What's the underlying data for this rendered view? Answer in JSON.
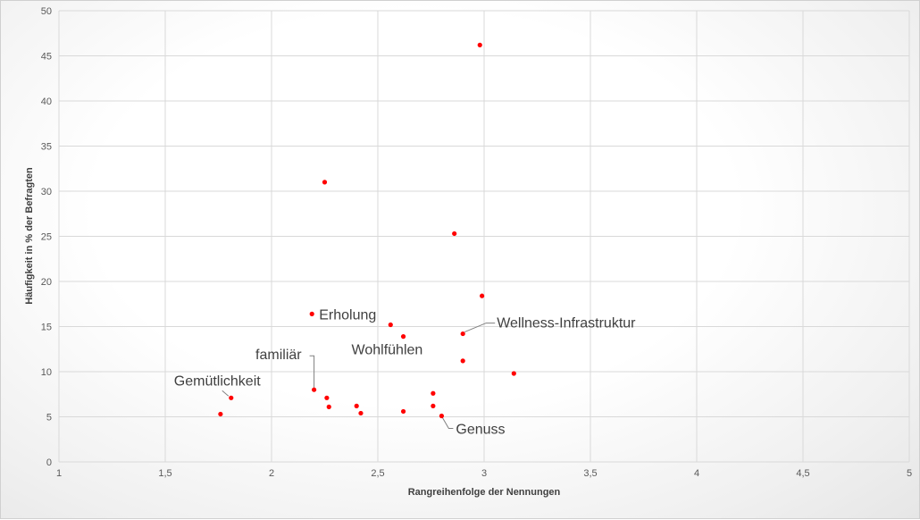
{
  "chart_data": {
    "type": "scatter",
    "title": "",
    "xlabel": "Rangreihenfolge der Nennungen",
    "ylabel": "Häufigkeit in % der Befragten",
    "xlim": [
      1,
      5
    ],
    "ylim": [
      0,
      50
    ],
    "xticks": [
      1,
      1.5,
      2,
      2.5,
      3,
      3.5,
      4,
      4.5,
      5
    ],
    "xtick_labels": [
      "1",
      "1,5",
      "2",
      "2,5",
      "3",
      "3,5",
      "4",
      "4,5",
      "5"
    ],
    "yticks": [
      0,
      5,
      10,
      15,
      20,
      25,
      30,
      35,
      40,
      45,
      50
    ],
    "grid": true,
    "marker_color": "#ff0000",
    "points": [
      {
        "x": 2.98,
        "y": 46.2,
        "label": ""
      },
      {
        "x": 2.25,
        "y": 31.0,
        "label": ""
      },
      {
        "x": 2.86,
        "y": 25.3,
        "label": ""
      },
      {
        "x": 2.99,
        "y": 18.4,
        "label": ""
      },
      {
        "x": 2.19,
        "y": 16.4,
        "label": "Erholung"
      },
      {
        "x": 2.56,
        "y": 15.2,
        "label": ""
      },
      {
        "x": 2.9,
        "y": 14.2,
        "label": "Wellness-Infrastruktur"
      },
      {
        "x": 2.62,
        "y": 13.9,
        "label": "Wohlfühlen"
      },
      {
        "x": 2.9,
        "y": 11.2,
        "label": ""
      },
      {
        "x": 3.14,
        "y": 9.8,
        "label": ""
      },
      {
        "x": 2.2,
        "y": 8.0,
        "label": "familiär"
      },
      {
        "x": 1.81,
        "y": 7.1,
        "label": "Gemütlichkeit"
      },
      {
        "x": 2.26,
        "y": 7.1,
        "label": ""
      },
      {
        "x": 2.76,
        "y": 7.6,
        "label": ""
      },
      {
        "x": 2.27,
        "y": 6.1,
        "label": ""
      },
      {
        "x": 2.4,
        "y": 6.2,
        "label": ""
      },
      {
        "x": 2.76,
        "y": 6.2,
        "label": ""
      },
      {
        "x": 2.42,
        "y": 5.4,
        "label": ""
      },
      {
        "x": 2.62,
        "y": 5.6,
        "label": ""
      },
      {
        "x": 2.8,
        "y": 5.1,
        "label": "Genuss"
      },
      {
        "x": 1.76,
        "y": 5.3,
        "label": ""
      }
    ]
  }
}
